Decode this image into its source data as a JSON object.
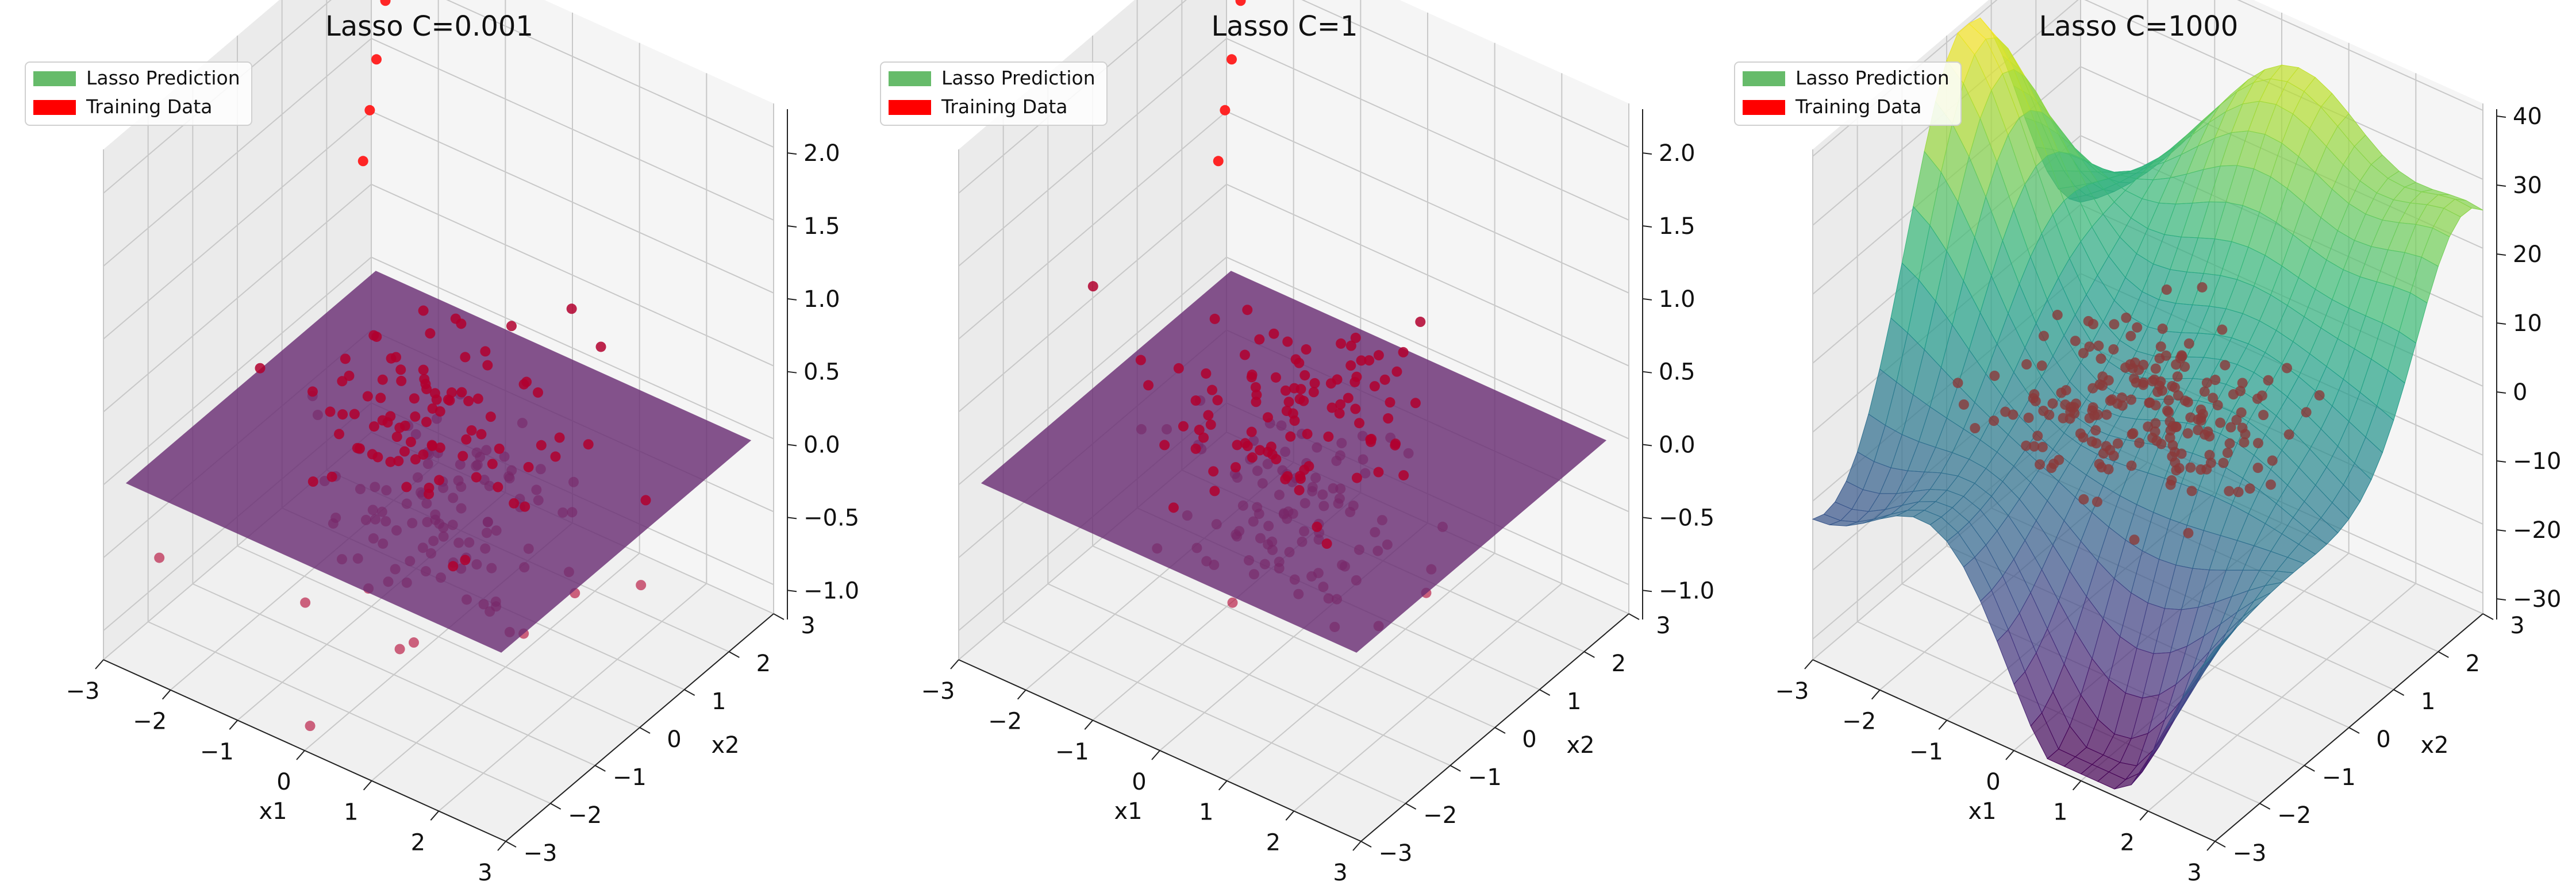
{
  "chart_data": [
    {
      "type": "surface3d",
      "title": "Lasso C=0.001",
      "xlabel": "x1",
      "ylabel": "x2",
      "xlim": [
        -3,
        3
      ],
      "ylim": [
        -3,
        3
      ],
      "zlim": [
        -1.2,
        2.3
      ],
      "xticks": [
        "−3",
        "−2",
        "−1",
        "0",
        "1",
        "2",
        "3"
      ],
      "yticks": [
        "−3",
        "−2",
        "−1",
        "0",
        "1",
        "2",
        "3"
      ],
      "zticks": [
        "−1.0",
        "−0.5",
        "0.0",
        "0.5",
        "1.0",
        "1.5",
        "2.0"
      ],
      "grid": true,
      "legend": [
        "Lasso Prediction",
        "Training Data"
      ],
      "legend_position": "top-left",
      "surface": "flat plane at z = 0 (purple)",
      "training_points": 200
    },
    {
      "type": "surface3d",
      "title": "Lasso C=1",
      "xlabel": "x1",
      "ylabel": "x2",
      "xlim": [
        -3,
        3
      ],
      "ylim": [
        -3,
        3
      ],
      "zlim": [
        -1.2,
        2.3
      ],
      "xticks": [
        "−3",
        "−2",
        "−1",
        "0",
        "1",
        "2",
        "3"
      ],
      "yticks": [
        "−3",
        "−2",
        "−1",
        "0",
        "1",
        "2",
        "3"
      ],
      "zticks": [
        "−1.0",
        "−0.5",
        "0.0",
        "0.5",
        "1.0",
        "1.5",
        "2.0"
      ],
      "grid": true,
      "legend": [
        "Lasso Prediction",
        "Training Data"
      ],
      "legend_position": "top-left",
      "surface": "flat plane at z = 0 (purple)",
      "training_points": 200
    },
    {
      "type": "surface3d",
      "title": "Lasso C=1000",
      "xlabel": "x1",
      "ylabel": "x2",
      "xlim": [
        -3,
        3
      ],
      "ylim": [
        -3,
        3
      ],
      "zlim": [
        -33,
        41
      ],
      "xticks": [
        "−3",
        "−2",
        "−1",
        "0",
        "1",
        "2",
        "3"
      ],
      "yticks": [
        "−3",
        "−2",
        "−1",
        "0",
        "1",
        "2",
        "3"
      ],
      "zticks": [
        "−30",
        "−20",
        "−10",
        "0",
        "10",
        "20",
        "30",
        "40"
      ],
      "grid": true,
      "legend": [
        "Lasso Prediction",
        "Training Data"
      ],
      "legend_position": "top-left",
      "surface": "curved overfit surface (viridis colormap)",
      "training_points": 200
    }
  ],
  "colors": {
    "prediction_legend": "#66bb6a",
    "training_legend": "#ff0000",
    "plane": "#6a2e74",
    "points": "#b2002e",
    "pane_left": "#ebebeb",
    "pane_right": "#f5f5f5",
    "pane_floor": "#f0f0f0",
    "grid": "#c8c8c8"
  }
}
